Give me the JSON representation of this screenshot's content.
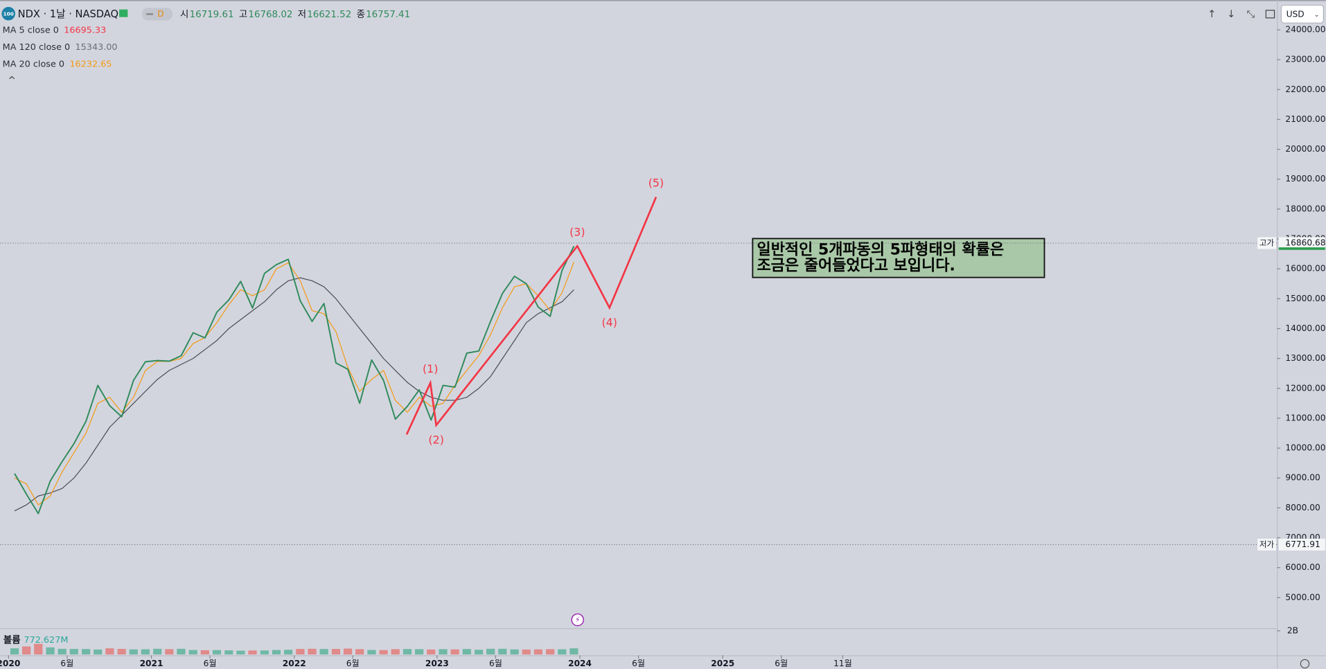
{
  "chart_data": {
    "type": "line",
    "title": "NDX · 1날 · NASDAQ",
    "ohlc": [
      {
        "label": "시",
        "value": "16719.61"
      },
      {
        "label": "고",
        "value": "16768.02"
      },
      {
        "label": "저",
        "value": "16621.52"
      },
      {
        "label": "종",
        "value": "16757.41"
      }
    ],
    "currency": "USD",
    "xlim": [
      2019.94,
      2028.88
    ],
    "xticks": [
      {
        "value": 2020,
        "label": "2020"
      },
      {
        "value": 2020.41,
        "label": "6월"
      },
      {
        "value": 2021,
        "label": "2021"
      },
      {
        "value": 2021.41,
        "label": "6월"
      },
      {
        "value": 2022,
        "label": "2022"
      },
      {
        "value": 2022.41,
        "label": "6월"
      },
      {
        "value": 2023,
        "label": "2023"
      },
      {
        "value": 2023.41,
        "label": "6월"
      },
      {
        "value": 2024,
        "label": "2024"
      },
      {
        "value": 2024.41,
        "label": "6월"
      },
      {
        "value": 2025,
        "label": "2025"
      },
      {
        "value": 2025.41,
        "label": "6월"
      },
      {
        "value": 2025.84,
        "label": "11월"
      }
    ],
    "ylim": [
      4000,
      24850
    ],
    "yticks": [
      {
        "value": 24000,
        "label": "24000.00"
      },
      {
        "value": 23000,
        "label": "23000.00"
      },
      {
        "value": 22000,
        "label": "22000.00"
      },
      {
        "value": 21000,
        "label": "21000.00"
      },
      {
        "value": 20000,
        "label": "20000.00"
      },
      {
        "value": 19000,
        "label": "19000.00"
      },
      {
        "value": 18000,
        "label": "18000.00"
      },
      {
        "value": 17000,
        "label": "17000.00"
      },
      {
        "value": 16000,
        "label": "16000.00"
      },
      {
        "value": 15000,
        "label": "15000.00"
      },
      {
        "value": 14000,
        "label": "14000.00"
      },
      {
        "value": 13000,
        "label": "13000.00"
      },
      {
        "value": 12000,
        "label": "12000.00"
      },
      {
        "value": 11000,
        "label": "11000.00"
      },
      {
        "value": 10000,
        "label": "10000.00"
      },
      {
        "value": 9000,
        "label": "9000.00"
      },
      {
        "value": 8000,
        "label": "8000.00"
      },
      {
        "value": 7000,
        "label": "7000.00"
      },
      {
        "value": 6000,
        "label": "6000.00"
      },
      {
        "value": 5000,
        "label": "5000.00"
      }
    ],
    "x": [
      2020.042,
      2020.125,
      2020.208,
      2020.292,
      2020.375,
      2020.458,
      2020.542,
      2020.625,
      2020.708,
      2020.792,
      2020.875,
      2020.958,
      2021.042,
      2021.125,
      2021.208,
      2021.292,
      2021.375,
      2021.458,
      2021.542,
      2021.625,
      2021.708,
      2021.792,
      2021.875,
      2021.958,
      2022.042,
      2022.125,
      2022.208,
      2022.292,
      2022.375,
      2022.458,
      2022.542,
      2022.625,
      2022.708,
      2022.792,
      2022.875,
      2022.958,
      2023.042,
      2023.125,
      2023.208,
      2023.292,
      2023.375,
      2023.458,
      2023.542,
      2023.625,
      2023.708,
      2023.792,
      2023.875,
      2023.958
    ],
    "close": {
      "color": "#2f8a5c",
      "values": [
        9150,
        8460,
        7810,
        8900,
        9550,
        10150,
        10900,
        12100,
        11420,
        11050,
        12270,
        12890,
        12930,
        12910,
        13090,
        13860,
        13690,
        14550,
        14960,
        15580,
        14690,
        15850,
        16140,
        16320,
        14930,
        14240,
        14840,
        12850,
        12640,
        11500,
        12950,
        12270,
        10970,
        11400,
        11950,
        10940,
        12100,
        12040,
        13180,
        13250,
        14250,
        15180,
        15750,
        15500,
        14720,
        14410,
        15950,
        16760
      ]
    },
    "indicators": [
      {
        "name": "MA 5 close 0",
        "last": "16695.33",
        "color": "#f23645"
      },
      {
        "name": "MA 120 close 0",
        "last": "15343.00",
        "color": "#6a6d78",
        "line_color": "#4a4d57",
        "values": [
          7900,
          8100,
          8400,
          8500,
          8650,
          9000,
          9500,
          10100,
          10700,
          11100,
          11500,
          11900,
          12300,
          12600,
          12800,
          13000,
          13300,
          13600,
          14000,
          14300,
          14600,
          14900,
          15300,
          15600,
          15700,
          15600,
          15400,
          15000,
          14500,
          14000,
          13500,
          13000,
          12600,
          12200,
          11900,
          11700,
          11600,
          11600,
          11700,
          12000,
          12400,
          13000,
          13600,
          14200,
          14500,
          14700,
          14900,
          15300
        ]
      },
      {
        "name": "MA 20 close 0",
        "last": "16232.65",
        "color": "#f59a14",
        "line_color": "#f59a14",
        "values": [
          9000,
          8800,
          8100,
          8400,
          9200,
          9850,
          10500,
          11500,
          11700,
          11200,
          11700,
          12600,
          12900,
          12900,
          13000,
          13500,
          13700,
          14200,
          14800,
          15300,
          15100,
          15300,
          16000,
          16200,
          15600,
          14600,
          14500,
          13900,
          12700,
          11900,
          12300,
          12600,
          11600,
          11200,
          11700,
          11400,
          11500,
          12100,
          12600,
          13100,
          13800,
          14700,
          15400,
          15500,
          15100,
          14600,
          15200,
          16230
        ]
      }
    ],
    "high_line": {
      "label": "고가",
      "value": 16860.68
    },
    "low_line": {
      "label": "저가",
      "value": 6771.91
    },
    "waves": {
      "color": "#f23645",
      "x": [
        2022.787,
        2022.953,
        2022.994,
        2023.982,
        2024.207,
        2024.533
      ],
      "y": [
        10457,
        12182,
        10768,
        16762,
        14698,
        18402
      ],
      "labels": [
        null,
        "(1)",
        "(2)",
        "(3)",
        "(4)",
        "(5)"
      ]
    },
    "note": [
      "일반적인 5개파동의 5파형태의 확률은",
      "조금은 줄어들었다고 보입니다."
    ],
    "volume": {
      "name": "볼륨",
      "last": "772.627M",
      "up_color": "#6fb8a6",
      "down_color": "#e08a8a",
      "ylim": [
        0,
        2000000000
      ],
      "yticks": [
        {
          "value": 2000000000,
          "label": "2B"
        }
      ],
      "values": [
        520000000,
        680000000,
        900000000,
        600000000,
        480000000,
        470000000,
        460000000,
        420000000,
        520000000,
        470000000,
        430000000,
        440000000,
        480000000,
        450000000,
        480000000,
        380000000,
        360000000,
        370000000,
        350000000,
        320000000,
        340000000,
        340000000,
        380000000,
        400000000,
        470000000,
        480000000,
        460000000,
        470000000,
        500000000,
        450000000,
        380000000,
        370000000,
        450000000,
        460000000,
        450000000,
        420000000,
        450000000,
        430000000,
        460000000,
        400000000,
        480000000,
        480000000,
        430000000,
        420000000,
        430000000,
        450000000,
        440000000,
        520000000
      ]
    }
  }
}
